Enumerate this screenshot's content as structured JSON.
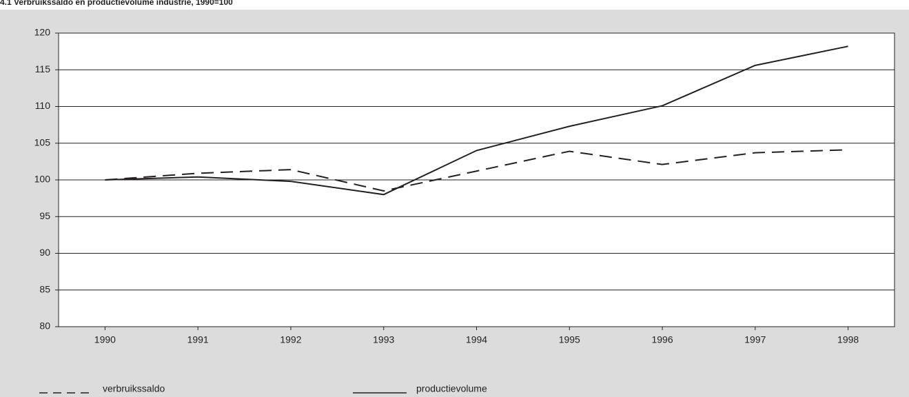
{
  "chart_data": {
    "type": "line",
    "title": "4.1 Verbruikssaldo en productievolume industrie, 1990=100",
    "categories": [
      "1990",
      "1991",
      "1992",
      "1993",
      "1994",
      "1995",
      "1996",
      "1997",
      "1998"
    ],
    "series": [
      {
        "name": "verbruikssaldo",
        "color": "#231f20",
        "dashed": true,
        "values": [
          100,
          100.9,
          101.4,
          98.5,
          101.2,
          103.9,
          102.1,
          103.7,
          104.1
        ]
      },
      {
        "name": "productievolume",
        "color": "#231f20",
        "dashed": false,
        "values": [
          100,
          100.4,
          99.8,
          98.0,
          104.0,
          107.3,
          110.1,
          115.6,
          118.2
        ]
      }
    ],
    "ylim": [
      80,
      120
    ],
    "yticks": [
      80,
      85,
      90,
      95,
      100,
      105,
      110,
      115,
      120
    ],
    "grid": true
  }
}
